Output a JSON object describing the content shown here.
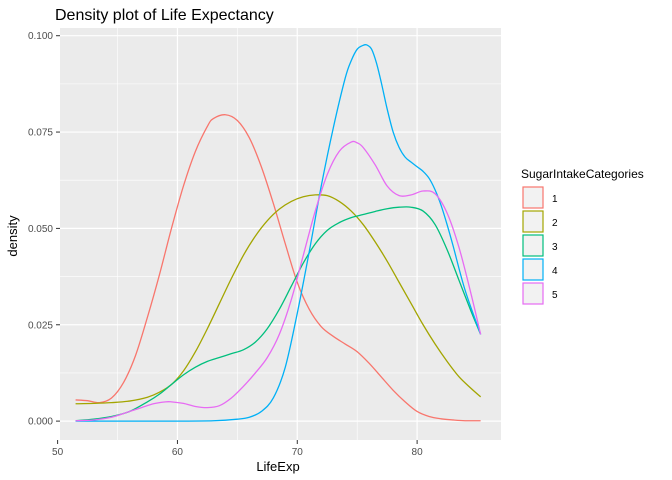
{
  "chart_data": {
    "type": "line",
    "title": "Density plot of Life Expectancy",
    "xlabel": "LifeExp",
    "ylabel": "density",
    "xlim": [
      50.2,
      87.0
    ],
    "ylim": [
      -0.0049,
      0.102
    ],
    "x_ticks": [
      50,
      60,
      70,
      80
    ],
    "x_tick_labels": [
      "50",
      "60",
      "70",
      "80"
    ],
    "y_ticks": [
      0,
      0.025,
      0.05,
      0.075,
      0.1
    ],
    "y_tick_labels": [
      "0.000",
      "0.025",
      "0.050",
      "0.075",
      "0.100"
    ],
    "grid": true,
    "legend": {
      "title": "SugarIntakeCategories",
      "position": "right"
    },
    "series": [
      {
        "name": "1",
        "color": "#F8766D",
        "x": [
          51.5,
          52.5,
          53.5,
          54.5,
          55.5,
          56.5,
          57.5,
          58.5,
          59.5,
          60.5,
          61.5,
          62.5,
          63.0,
          64.0,
          65.0,
          66.0,
          67.0,
          68.0,
          69.0,
          70.0,
          71.0,
          72.0,
          73.0,
          74.0,
          75.0,
          76.0,
          77.0,
          78.0,
          79.0,
          80.0,
          81.0,
          82.0,
          83.0,
          84.0,
          85.3
        ],
        "y": [
          0.0055,
          0.0053,
          0.0048,
          0.006,
          0.01,
          0.017,
          0.027,
          0.038,
          0.05,
          0.061,
          0.07,
          0.0765,
          0.0785,
          0.0795,
          0.078,
          0.0735,
          0.066,
          0.0565,
          0.046,
          0.036,
          0.029,
          0.0245,
          0.022,
          0.02,
          0.018,
          0.015,
          0.0115,
          0.008,
          0.005,
          0.0025,
          0.0012,
          0.0006,
          0.0003,
          0.0001,
          0.0001
        ]
      },
      {
        "name": "2",
        "color": "#A3A500",
        "x": [
          51.5,
          53.0,
          54.5,
          56.0,
          57.5,
          58.5,
          59.5,
          60.5,
          61.5,
          62.5,
          63.5,
          64.5,
          65.5,
          66.5,
          67.5,
          68.5,
          69.5,
          70.5,
          71.5,
          72.5,
          73.5,
          74.5,
          75.5,
          76.5,
          77.5,
          78.5,
          79.5,
          80.5,
          81.5,
          82.5,
          83.5,
          84.5,
          85.3
        ],
        "y": [
          0.0045,
          0.0046,
          0.0048,
          0.0052,
          0.0062,
          0.0075,
          0.0095,
          0.013,
          0.018,
          0.024,
          0.0305,
          0.037,
          0.043,
          0.048,
          0.052,
          0.055,
          0.057,
          0.0582,
          0.0587,
          0.0585,
          0.057,
          0.0545,
          0.051,
          0.0465,
          0.0415,
          0.036,
          0.0305,
          0.025,
          0.02,
          0.0155,
          0.0115,
          0.0085,
          0.0063
        ]
      },
      {
        "name": "3",
        "color": "#00BF7D",
        "x": [
          51.5,
          53.0,
          54.5,
          56.0,
          57.5,
          58.5,
          59.5,
          60.5,
          61.5,
          62.5,
          63.5,
          64.5,
          65.5,
          66.5,
          67.5,
          68.5,
          69.5,
          70.5,
          71.5,
          72.5,
          73.5,
          74.5,
          75.5,
          76.5,
          77.5,
          78.5,
          79.5,
          80.5,
          81.5,
          82.5,
          83.5,
          84.5,
          85.3
        ],
        "y": [
          0.0001,
          0.0005,
          0.0012,
          0.0025,
          0.005,
          0.007,
          0.0095,
          0.012,
          0.014,
          0.0155,
          0.0165,
          0.0175,
          0.0185,
          0.0205,
          0.024,
          0.029,
          0.035,
          0.041,
          0.046,
          0.0495,
          0.0515,
          0.0528,
          0.0536,
          0.0544,
          0.0551,
          0.0555,
          0.0555,
          0.0545,
          0.051,
          0.0445,
          0.0365,
          0.0285,
          0.0225
        ]
      },
      {
        "name": "4",
        "color": "#00B0F6",
        "x": [
          51.5,
          55.0,
          60.0,
          63.0,
          65.0,
          66.0,
          67.0,
          68.0,
          69.0,
          70.0,
          71.0,
          72.0,
          73.0,
          74.0,
          74.5,
          75.0,
          75.5,
          75.8,
          76.2,
          76.6,
          77.0,
          77.5,
          78.0,
          78.5,
          79.0,
          79.5,
          80.0,
          80.5,
          81.0,
          81.5,
          82.0,
          82.5,
          83.0,
          84.0,
          85.3
        ],
        "y": [
          0.0,
          0.0,
          0.0,
          0.0001,
          0.0005,
          0.001,
          0.0025,
          0.006,
          0.014,
          0.028,
          0.044,
          0.061,
          0.076,
          0.089,
          0.0935,
          0.0965,
          0.0975,
          0.0976,
          0.0965,
          0.093,
          0.088,
          0.081,
          0.075,
          0.071,
          0.0685,
          0.0672,
          0.066,
          0.0648,
          0.063,
          0.06,
          0.056,
          0.051,
          0.0455,
          0.034,
          0.0225
        ]
      },
      {
        "name": "5",
        "color": "#E76BF3",
        "x": [
          51.5,
          53.0,
          54.5,
          56.0,
          57.0,
          58.0,
          59.0,
          59.5,
          60.5,
          61.5,
          62.5,
          63.5,
          64.5,
          65.5,
          66.5,
          67.5,
          68.5,
          69.5,
          70.5,
          71.5,
          72.5,
          73.5,
          74.5,
          75.0,
          75.5,
          76.5,
          77.5,
          78.5,
          79.5,
          80.5,
          81.5,
          82.5,
          83.5,
          84.5,
          85.3
        ],
        "y": [
          0.0001,
          0.0003,
          0.001,
          0.0025,
          0.0035,
          0.0045,
          0.005,
          0.005,
          0.0046,
          0.0038,
          0.0035,
          0.004,
          0.006,
          0.009,
          0.0125,
          0.0165,
          0.0225,
          0.0315,
          0.043,
          0.0545,
          0.064,
          0.07,
          0.0724,
          0.0722,
          0.071,
          0.0665,
          0.061,
          0.0585,
          0.0587,
          0.0597,
          0.059,
          0.054,
          0.045,
          0.033,
          0.0225
        ]
      }
    ]
  }
}
